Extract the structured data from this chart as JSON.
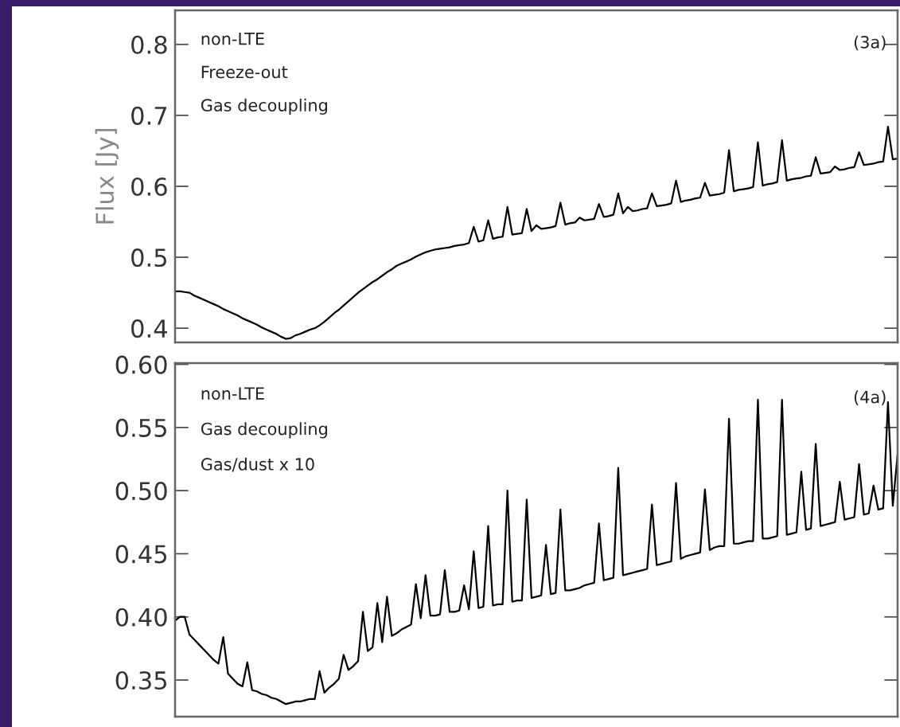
{
  "chart_data": [
    {
      "type": "line",
      "ylabel": "Flux [Jy]",
      "ylim": [
        0.38,
        0.848
      ],
      "yticks": [
        0.4,
        0.5,
        0.6,
        0.7,
        0.8
      ],
      "annotations": [
        "non-LTE",
        "Freeze-out",
        "Gas decoupling",
        "(3a)"
      ],
      "categories": [
        null,
        null,
        null,
        null,
        null,
        null,
        null,
        null,
        null,
        null,
        null,
        null,
        null,
        null,
        null,
        null,
        null,
        null,
        null,
        null,
        null,
        null,
        null,
        null,
        null,
        null,
        null,
        null,
        null,
        null,
        null,
        null,
        null,
        null,
        null,
        null,
        null,
        null,
        null,
        null,
        null,
        null,
        null,
        null,
        null,
        null,
        null,
        null,
        null,
        null,
        null,
        null,
        null,
        null,
        null,
        null,
        null,
        null,
        null,
        null,
        null,
        null,
        null,
        null,
        null,
        null,
        null,
        null,
        null,
        null,
        null,
        null,
        null,
        null,
        null,
        null,
        null,
        null,
        null,
        null,
        null,
        null,
        null,
        null,
        null,
        null,
        null,
        null,
        null,
        null,
        null,
        null,
        null,
        null,
        null,
        null,
        null,
        null,
        null,
        null,
        null,
        null,
        null,
        null,
        null,
        null,
        null,
        null,
        null,
        null,
        null,
        null,
        null,
        null,
        null,
        null,
        null,
        null,
        null,
        null,
        null,
        null,
        null,
        null,
        null,
        null,
        null,
        null,
        null,
        null,
        null,
        null,
        null,
        null,
        null,
        null,
        null,
        null,
        null,
        null,
        null,
        null,
        null,
        null,
        null,
        null,
        null,
        null,
        null,
        null,
        null
      ],
      "series": [
        {
          "color": "#000000",
          "values": [
            0.452,
            0.452,
            0.451,
            0.45,
            0.446,
            0.443,
            0.44,
            0.437,
            0.434,
            0.431,
            0.427,
            0.424,
            0.421,
            0.418,
            0.414,
            0.411,
            0.408,
            0.405,
            0.401,
            0.398,
            0.395,
            0.392,
            0.388,
            0.385,
            0.386,
            0.39,
            0.392,
            0.395,
            0.398,
            0.4,
            0.404,
            0.409,
            0.415,
            0.421,
            0.426,
            0.432,
            0.438,
            0.444,
            0.45,
            0.455,
            0.46,
            0.465,
            0.469,
            0.474,
            0.479,
            0.483,
            0.488,
            0.491,
            0.494,
            0.497,
            0.501,
            0.504,
            0.507,
            0.509,
            0.511,
            0.512,
            0.513,
            0.514,
            0.516,
            0.517,
            0.518,
            0.52,
            0.543,
            0.522,
            0.524,
            0.552,
            0.526,
            0.528,
            0.529,
            0.571,
            0.532,
            0.533,
            0.534,
            0.568,
            0.537,
            0.545,
            0.54,
            0.541,
            0.542,
            0.544,
            0.577,
            0.546,
            0.548,
            0.549,
            0.556,
            0.552,
            0.553,
            0.554,
            0.575,
            0.557,
            0.558,
            0.56,
            0.59,
            0.562,
            0.571,
            0.565,
            0.566,
            0.568,
            0.569,
            0.59,
            0.572,
            0.573,
            0.574,
            0.576,
            0.608,
            0.578,
            0.58,
            0.581,
            0.583,
            0.584,
            0.605,
            0.587,
            0.588,
            0.589,
            0.591,
            0.651,
            0.593,
            0.595,
            0.596,
            0.597,
            0.599,
            0.662,
            0.601,
            0.603,
            0.604,
            0.606,
            0.665,
            0.608,
            0.61,
            0.611,
            0.612,
            0.614,
            0.615,
            0.641,
            0.618,
            0.619,
            0.62,
            0.628,
            0.623,
            0.624,
            0.626,
            0.627,
            0.648,
            0.63,
            0.631,
            0.632,
            0.634,
            0.635,
            0.684,
            0.638,
            0.639
          ]
        }
      ]
    },
    {
      "type": "line",
      "ylim": [
        0.321,
        0.601
      ],
      "yticks": [
        0.35,
        {
          "value": 0.4,
          "label": "0.40"
        },
        0.45,
        {
          "value": 0.5,
          "label": "0.50"
        },
        0.55,
        {
          "value": 0.6,
          "label": "0.60"
        }
      ],
      "annotations": [
        "non-LTE",
        "Gas decoupling",
        "Gas/dust x 10",
        "(4a)"
      ],
      "categories": [
        null,
        null,
        null,
        null,
        null,
        null,
        null,
        null,
        null,
        null,
        null,
        null,
        null,
        null,
        null,
        null,
        null,
        null,
        null,
        null,
        null,
        null,
        null,
        null,
        null,
        null,
        null,
        null,
        null,
        null,
        null,
        null,
        null,
        null,
        null,
        null,
        null,
        null,
        null,
        null,
        null,
        null,
        null,
        null,
        null,
        null,
        null,
        null,
        null,
        null,
        null,
        null,
        null,
        null,
        null,
        null,
        null,
        null,
        null,
        null,
        null,
        null,
        null,
        null,
        null,
        null,
        null,
        null,
        null,
        null,
        null,
        null,
        null,
        null,
        null,
        null,
        null,
        null,
        null,
        null,
        null,
        null,
        null,
        null,
        null,
        null,
        null,
        null,
        null,
        null,
        null,
        null,
        null,
        null,
        null,
        null,
        null,
        null,
        null,
        null,
        null,
        null,
        null,
        null,
        null,
        null,
        null,
        null,
        null,
        null,
        null,
        null,
        null,
        null,
        null,
        null,
        null,
        null,
        null,
        null,
        null,
        null,
        null,
        null,
        null,
        null,
        null,
        null,
        null,
        null,
        null,
        null,
        null,
        null,
        null,
        null,
        null,
        null,
        null,
        null,
        null,
        null,
        null,
        null,
        null,
        null,
        null,
        null,
        null,
        null,
        null
      ],
      "series": [
        {
          "color": "#000000",
          "values": [
            0.397,
            0.4,
            0.4,
            0.386,
            0.382,
            0.378,
            0.374,
            0.37,
            0.366,
            0.363,
            0.384,
            0.355,
            0.351,
            0.347,
            0.345,
            0.364,
            0.342,
            0.341,
            0.339,
            0.338,
            0.336,
            0.335,
            0.333,
            0.331,
            0.332,
            0.333,
            0.333,
            0.334,
            0.335,
            0.335,
            0.357,
            0.34,
            0.344,
            0.347,
            0.351,
            0.37,
            0.358,
            0.361,
            0.365,
            0.404,
            0.373,
            0.376,
            0.411,
            0.38,
            0.416,
            0.385,
            0.387,
            0.39,
            0.392,
            0.394,
            0.426,
            0.399,
            0.433,
            0.401,
            0.401,
            0.402,
            0.437,
            0.404,
            0.404,
            0.405,
            0.425,
            0.406,
            0.452,
            0.407,
            0.408,
            0.472,
            0.409,
            0.41,
            0.41,
            0.5,
            0.412,
            0.413,
            0.413,
            0.493,
            0.415,
            0.416,
            0.417,
            0.457,
            0.418,
            0.419,
            0.485,
            0.421,
            0.421,
            0.422,
            0.423,
            0.425,
            0.426,
            0.427,
            0.474,
            0.429,
            0.43,
            0.431,
            0.518,
            0.433,
            0.434,
            0.435,
            0.436,
            0.437,
            0.438,
            0.489,
            0.441,
            0.442,
            0.443,
            0.444,
            0.506,
            0.446,
            0.448,
            0.449,
            0.45,
            0.451,
            0.501,
            0.453,
            0.455,
            0.456,
            0.456,
            0.557,
            0.458,
            0.458,
            0.459,
            0.46,
            0.46,
            0.572,
            0.462,
            0.462,
            0.463,
            0.464,
            0.572,
            0.465,
            0.466,
            0.467,
            0.515,
            0.469,
            0.47,
            0.537,
            0.472,
            0.473,
            0.474,
            0.475,
            0.507,
            0.477,
            0.478,
            0.479,
            0.521,
            0.481,
            0.482,
            0.504,
            0.485,
            0.486,
            0.57,
            0.488,
            0.529
          ]
        }
      ]
    }
  ]
}
